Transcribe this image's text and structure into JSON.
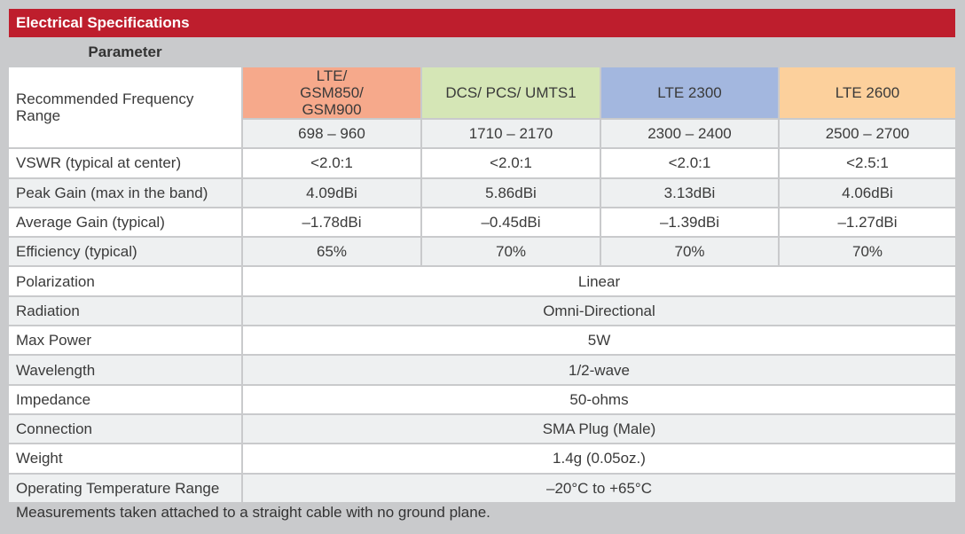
{
  "title": "Electrical Specifications",
  "parameter_header": "Parameter",
  "bands": [
    {
      "name": "LTE/ GSM850/ GSM900",
      "range": "698 – 960",
      "color": "#f6a98b"
    },
    {
      "name": "DCS/ PCS/ UMTS1",
      "range": "1710 – 2170",
      "color": "#d5e6b6"
    },
    {
      "name": "LTE 2300",
      "range": "2300 – 2400",
      "color": "#a3b7df"
    },
    {
      "name": "LTE 2600",
      "range": "2500 – 2700",
      "color": "#fcd09c"
    }
  ],
  "freq_label": "Recommended Frequency Range",
  "band_rows": [
    {
      "label": "VSWR (typical at center)",
      "values": [
        "<2.0:1",
        "<2.0:1",
        "<2.0:1",
        "<2.5:1"
      ]
    },
    {
      "label": "Peak Gain (max in the band)",
      "values": [
        "4.09dBi",
        "5.86dBi",
        "3.13dBi",
        "4.06dBi"
      ]
    },
    {
      "label": "Average Gain (typical)",
      "values": [
        "–1.78dBi",
        "–0.45dBi",
        "–1.39dBi",
        "–1.27dBi"
      ]
    },
    {
      "label": "Efficiency (typical)",
      "values": [
        "65%",
        "70%",
        "70%",
        "70%"
      ]
    }
  ],
  "common_rows": [
    {
      "label": "Polarization",
      "value": "Linear"
    },
    {
      "label": "Radiation",
      "value": "Omni-Directional"
    },
    {
      "label": "Max Power",
      "value": "5W"
    },
    {
      "label": "Wavelength",
      "value": "1/2-wave"
    },
    {
      "label": "Impedance",
      "value": "50-ohms"
    },
    {
      "label": "Connection",
      "value": "SMA Plug (Male)"
    },
    {
      "label": "Weight",
      "value": "1.4g (0.05oz.)"
    },
    {
      "label": "Operating Temperature Range",
      "value": "–20°C to +65°C"
    }
  ],
  "footnote": "Measurements taken attached to a straight cable with no ground plane.",
  "colors": {
    "title_bar": "#be1e2d",
    "background": "#c9cacc",
    "row_alt": "#eef0f1"
  }
}
